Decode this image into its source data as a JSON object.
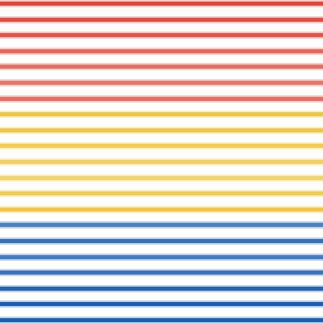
{
  "pattern": {
    "groups": [
      {
        "name": "red",
        "color": "#e0473a",
        "stripes": [
          {
            "intensity": 1.0
          },
          {
            "intensity": 0.95
          },
          {
            "intensity": 0.9
          },
          {
            "intensity": 0.75
          },
          {
            "intensity": 0.7
          },
          {
            "intensity": 0.65
          },
          {
            "intensity": 0.72
          }
        ]
      },
      {
        "name": "yellow",
        "color": "#f0c030",
        "stripes": [
          {
            "intensity": 0.9
          },
          {
            "intensity": 0.85
          },
          {
            "intensity": 0.8
          },
          {
            "intensity": 0.65
          },
          {
            "intensity": 0.6
          },
          {
            "intensity": 0.75
          },
          {
            "intensity": 0.85
          }
        ]
      },
      {
        "name": "blue",
        "color": "#1a5fb0",
        "stripes": [
          {
            "intensity": 0.7
          },
          {
            "intensity": 0.85
          },
          {
            "intensity": 0.75
          },
          {
            "intensity": 0.8
          },
          {
            "intensity": 0.95
          },
          {
            "intensity": 1.0
          },
          {
            "intensity": 1.0
          }
        ]
      }
    ]
  }
}
